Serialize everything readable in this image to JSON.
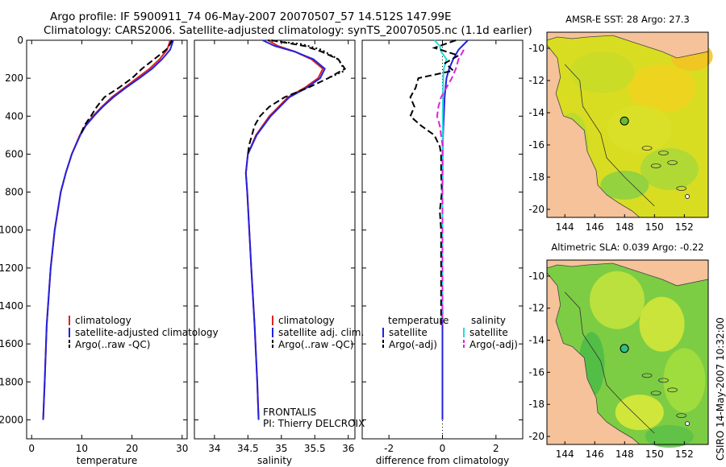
{
  "header": {
    "line1": "Argo profile: IF 5900911_74 06-May-2007 20070507_57 14.512S 147.99E",
    "line2": "Climatology: CARS2006. Satellite-adjusted climatology: synTS_20070505.nc (1.1d earlier)"
  },
  "footer": {
    "stamp": "CSIRO 14-May-2007 10:32:00"
  },
  "colors": {
    "climatology": "#dd2222",
    "satellite": "#2222dd",
    "argo": "#000000",
    "sal_satellite": "#22dddd",
    "sal_argo": "#dd22dd",
    "land": "#f5c29a",
    "sea_green": "#7ccd44"
  },
  "chart_data": [
    {
      "type": "line",
      "id": "temperature",
      "xlabel": "temperature",
      "xlim": [
        -1,
        31
      ],
      "ylim": [
        0,
        2100
      ],
      "y_inverted": true,
      "xticks": [
        0,
        10,
        20,
        30
      ],
      "yticks": [
        0,
        200,
        400,
        600,
        800,
        1000,
        1200,
        1400,
        1600,
        1800,
        2000
      ],
      "legend": [
        "climatology",
        "satellite-adjusted climatology",
        "Argo(..raw -QC)"
      ],
      "series": [
        {
          "name": "climatology",
          "style": "solid",
          "color": "#dd2222",
          "depth": [
            0,
            20,
            50,
            100,
            150,
            200,
            250,
            300,
            350,
            400,
            450,
            500,
            600,
            700,
            800,
            1000,
            1200,
            1500,
            1800,
            2000
          ],
          "values": [
            27.6,
            27.4,
            27.0,
            25.5,
            23.5,
            21.0,
            18.5,
            16.0,
            14.0,
            12.2,
            10.7,
            9.6,
            8.0,
            6.8,
            5.8,
            4.6,
            3.8,
            3.0,
            2.6,
            2.3
          ]
        },
        {
          "name": "satellite-adjusted climatology",
          "style": "solid",
          "color": "#2222dd",
          "depth": [
            0,
            20,
            50,
            100,
            150,
            200,
            250,
            300,
            350,
            400,
            450,
            500,
            600,
            700,
            800,
            1000,
            1200,
            1500,
            1800,
            2000
          ],
          "values": [
            28.2,
            28.0,
            27.6,
            26.0,
            24.0,
            21.5,
            18.8,
            16.3,
            14.2,
            12.4,
            10.8,
            9.7,
            8.0,
            6.8,
            5.8,
            4.6,
            3.8,
            3.0,
            2.6,
            2.3
          ]
        },
        {
          "name": "Argo(..raw -QC)",
          "style": "dashed",
          "color": "#000000",
          "depth": [
            0,
            20,
            50,
            100,
            150,
            200,
            250,
            300,
            350,
            400,
            450,
            500
          ],
          "values": [
            28.0,
            27.6,
            26.8,
            24.4,
            22.0,
            20.0,
            17.4,
            14.5,
            13.0,
            11.8,
            10.5,
            9.7
          ]
        }
      ]
    },
    {
      "type": "line",
      "id": "salinity",
      "xlabel": "salinity",
      "xlim": [
        33.7,
        36.1
      ],
      "ylim": [
        0,
        2100
      ],
      "y_inverted": true,
      "xticks": [
        34,
        34.5,
        35,
        35.5,
        36
      ],
      "legend": [
        "climatology",
        "satellite adj. clim.",
        "Argo(..raw -QC)"
      ],
      "annotation": [
        "FRONTALIS",
        "PI: Thierry DELCROIX"
      ],
      "series": [
        {
          "name": "climatology",
          "style": "solid",
          "color": "#dd2222",
          "depth": [
            0,
            30,
            60,
            100,
            150,
            200,
            250,
            300,
            400,
            500,
            600,
            700,
            800,
            1000,
            1200,
            1500,
            1800,
            2000
          ],
          "values": [
            34.8,
            34.95,
            35.2,
            35.45,
            35.62,
            35.55,
            35.35,
            35.1,
            34.82,
            34.62,
            34.5,
            34.47,
            34.49,
            34.52,
            34.55,
            34.6,
            34.64,
            34.66
          ]
        },
        {
          "name": "satellite adj. clim.",
          "style": "solid",
          "color": "#2222dd",
          "depth": [
            0,
            30,
            60,
            100,
            150,
            200,
            250,
            300,
            400,
            500,
            600,
            700,
            800,
            1000,
            1200,
            1500,
            1800,
            2000
          ],
          "values": [
            34.72,
            34.9,
            35.2,
            35.48,
            35.65,
            35.58,
            35.38,
            35.12,
            34.84,
            34.63,
            34.5,
            34.47,
            34.49,
            34.52,
            34.55,
            34.6,
            34.64,
            34.66
          ]
        },
        {
          "name": "Argo(..raw -QC) dotted",
          "style": "dotted",
          "color": "#000000",
          "depth": [
            0,
            20,
            50,
            80,
            100,
            130,
            160,
            200
          ],
          "values": [
            34.8,
            35.3,
            35.6,
            35.75,
            35.85,
            35.9,
            35.95,
            35.7
          ]
        },
        {
          "name": "Argo(..raw -QC)",
          "style": "dashed",
          "color": "#000000",
          "depth": [
            0,
            30,
            60,
            100,
            150,
            200,
            250,
            300,
            350,
            400,
            450,
            500,
            550,
            600
          ],
          "values": [
            34.85,
            35.35,
            35.6,
            35.85,
            35.95,
            35.7,
            35.4,
            35.05,
            34.82,
            34.68,
            34.6,
            34.56,
            34.52,
            34.5
          ]
        }
      ]
    },
    {
      "type": "line",
      "id": "difference",
      "xlabel": "difference from climatology",
      "xlim": [
        -3,
        3
      ],
      "ylim": [
        0,
        2100
      ],
      "y_inverted": true,
      "xticks": [
        -2,
        0,
        2
      ],
      "legend_headers": [
        "temperature",
        "salinity"
      ],
      "legend": [
        "satellite",
        "Argo(-adj)",
        "satellite",
        "Argo(-adj)"
      ],
      "series": [
        {
          "name": "temperature satellite",
          "style": "solid",
          "color": "#2222dd",
          "depth": [
            0,
            50,
            100,
            150,
            200,
            300,
            400,
            500,
            600,
            800,
            1000,
            1200,
            1400,
            1800,
            2000
          ],
          "values": [
            0.95,
            0.6,
            0.4,
            0.25,
            0.15,
            0.08,
            0.05,
            0.02,
            0.01,
            0,
            0,
            0,
            0,
            0,
            0
          ]
        },
        {
          "name": "salinity satellite",
          "style": "solid",
          "color": "#22dddd",
          "depth": [
            0,
            30,
            60,
            100,
            150,
            200,
            300,
            400,
            600,
            800,
            1000,
            1200,
            1400,
            1500
          ],
          "values": [
            -0.3,
            -0.1,
            -0.05,
            0.15,
            0.05,
            0.03,
            0.02,
            0.01,
            0.01,
            0,
            0,
            0,
            0,
            -0.05
          ]
        },
        {
          "name": "temperature Argo(-adj)",
          "style": "dashed",
          "color": "#000000",
          "depth": [
            0,
            40,
            80,
            120,
            160,
            200,
            250,
            300,
            350,
            400,
            450,
            500,
            560,
            600,
            700,
            800,
            900,
            1000,
            1200,
            1400,
            1500
          ],
          "values": [
            0.5,
            -0.3,
            0.6,
            0.1,
            0.4,
            -0.9,
            -1.0,
            -1.2,
            -1.05,
            -1.2,
            -0.8,
            -0.3,
            -0.1,
            -0.05,
            -0.05,
            -0.02,
            -0.1,
            -0.05,
            -0.05,
            -0.05,
            -0.05
          ]
        },
        {
          "name": "salinity Argo(-adj)",
          "style": "dashed",
          "color": "#dd22dd",
          "depth": [
            50,
            100,
            150,
            200,
            250,
            300,
            350,
            400,
            450,
            500,
            550,
            600,
            700,
            800,
            1000,
            1200,
            1400,
            1500
          ],
          "values": [
            0.8,
            0.6,
            0.5,
            0.35,
            0.15,
            -0.05,
            -0.15,
            -0.2,
            -0.1,
            -0.05,
            0,
            0,
            0,
            0,
            0,
            0,
            0,
            0
          ]
        }
      ]
    },
    {
      "type": "heatmap",
      "id": "sst_map",
      "title": "AMSR-E SST: 28  Argo: 27.3",
      "xticks": [
        144,
        146,
        148,
        150,
        152
      ],
      "yticks": [
        -10,
        -12,
        -14,
        -16,
        -18,
        -20
      ],
      "marker": {
        "lon": 147.99,
        "lat": -14.512
      }
    },
    {
      "type": "heatmap",
      "id": "sla_map",
      "title": "Altimetric SLA: 0.039  Argo: -0.22",
      "xticks": [
        144,
        146,
        148,
        150,
        152
      ],
      "yticks": [
        -10,
        -12,
        -14,
        -16,
        -18,
        -20
      ],
      "marker": {
        "lon": 147.99,
        "lat": -14.512
      }
    }
  ]
}
